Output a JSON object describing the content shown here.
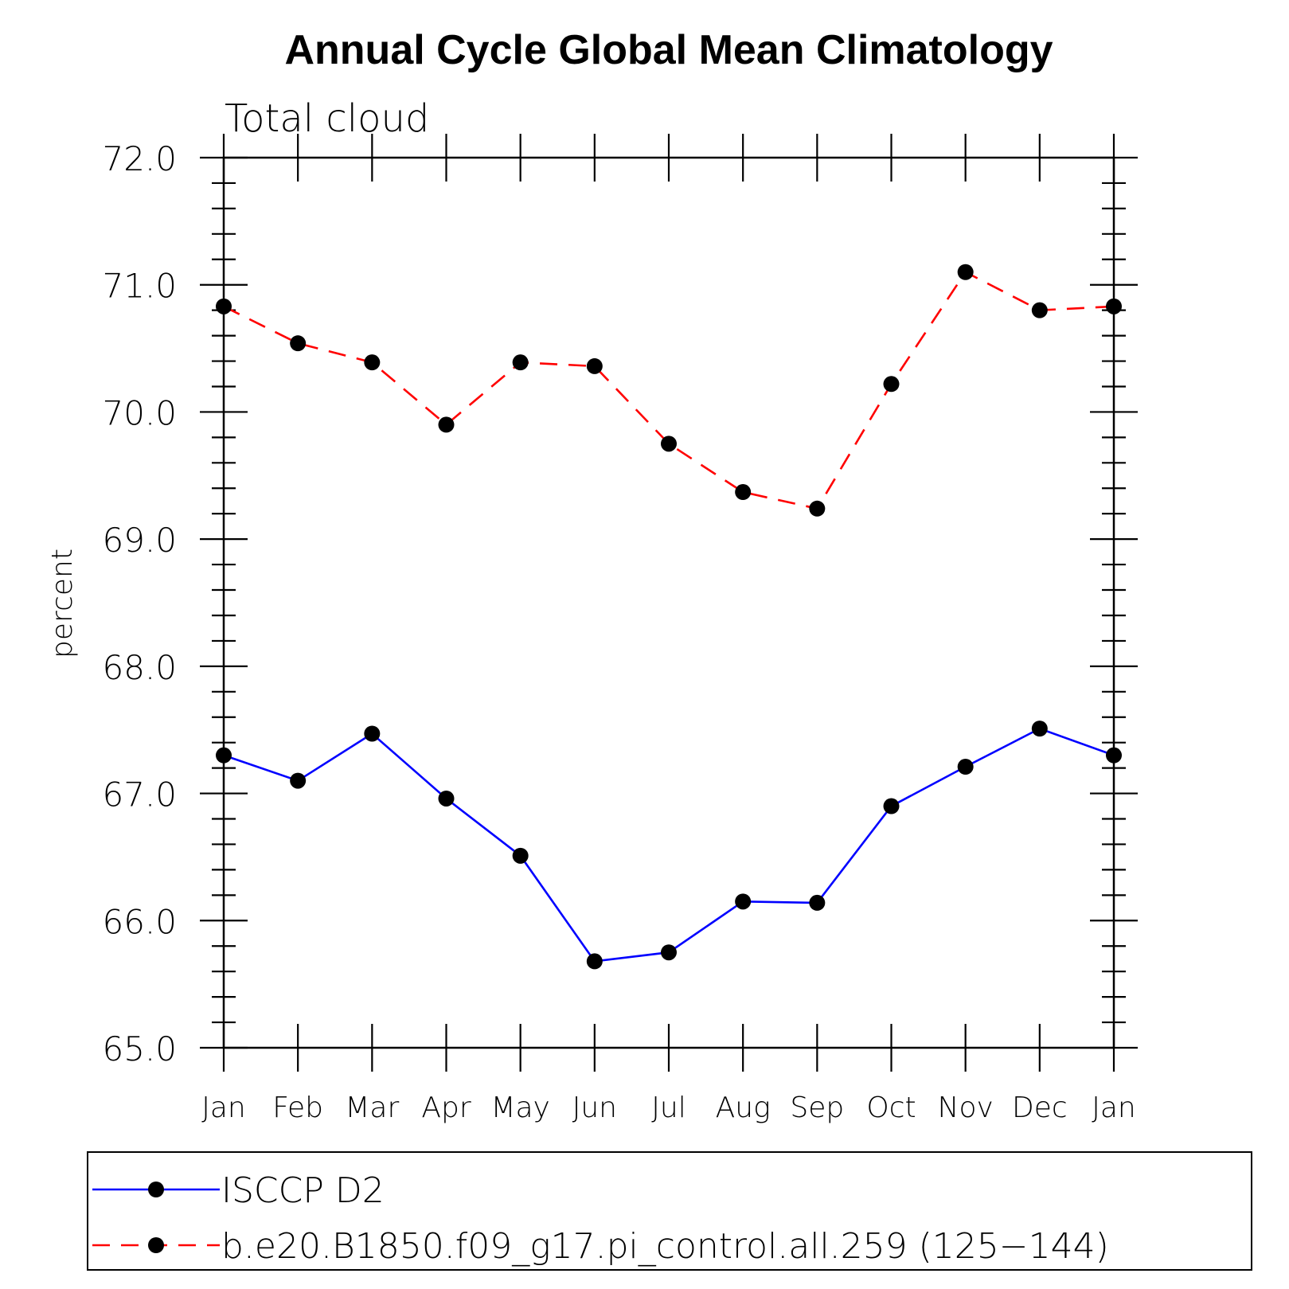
{
  "chart_data": {
    "type": "line",
    "title": "Annual Cycle Global Mean Climatology",
    "subtitle": "Total cloud",
    "xlabel": "",
    "ylabel": "percent",
    "ylim": [
      65.0,
      72.0
    ],
    "yticks": [
      "65.0",
      "66.0",
      "67.0",
      "68.0",
      "69.0",
      "70.0",
      "71.0",
      "72.0"
    ],
    "categories": [
      "Jan",
      "Feb",
      "Mar",
      "Apr",
      "May",
      "Jun",
      "Jul",
      "Aug",
      "Sep",
      "Oct",
      "Nov",
      "Dec",
      "Jan"
    ],
    "grid": false,
    "legend_position": "bottom",
    "series": [
      {
        "name": "ISCCP D2",
        "color": "#0000ff",
        "dash": "solid",
        "marker": "filled-circle",
        "values": [
          67.3,
          67.1,
          67.47,
          66.96,
          66.51,
          65.68,
          65.75,
          66.15,
          66.14,
          66.9,
          67.21,
          67.51,
          67.3
        ]
      },
      {
        "name": "b.e20.B1850.f09_g17.pi_control.all.259 (125−144)",
        "color": "#ff0000",
        "dash": "dashed",
        "marker": "filled-circle",
        "values": [
          70.83,
          70.54,
          70.39,
          69.9,
          70.39,
          70.36,
          69.75,
          69.37,
          69.24,
          70.22,
          71.1,
          70.8,
          70.83
        ]
      }
    ]
  }
}
